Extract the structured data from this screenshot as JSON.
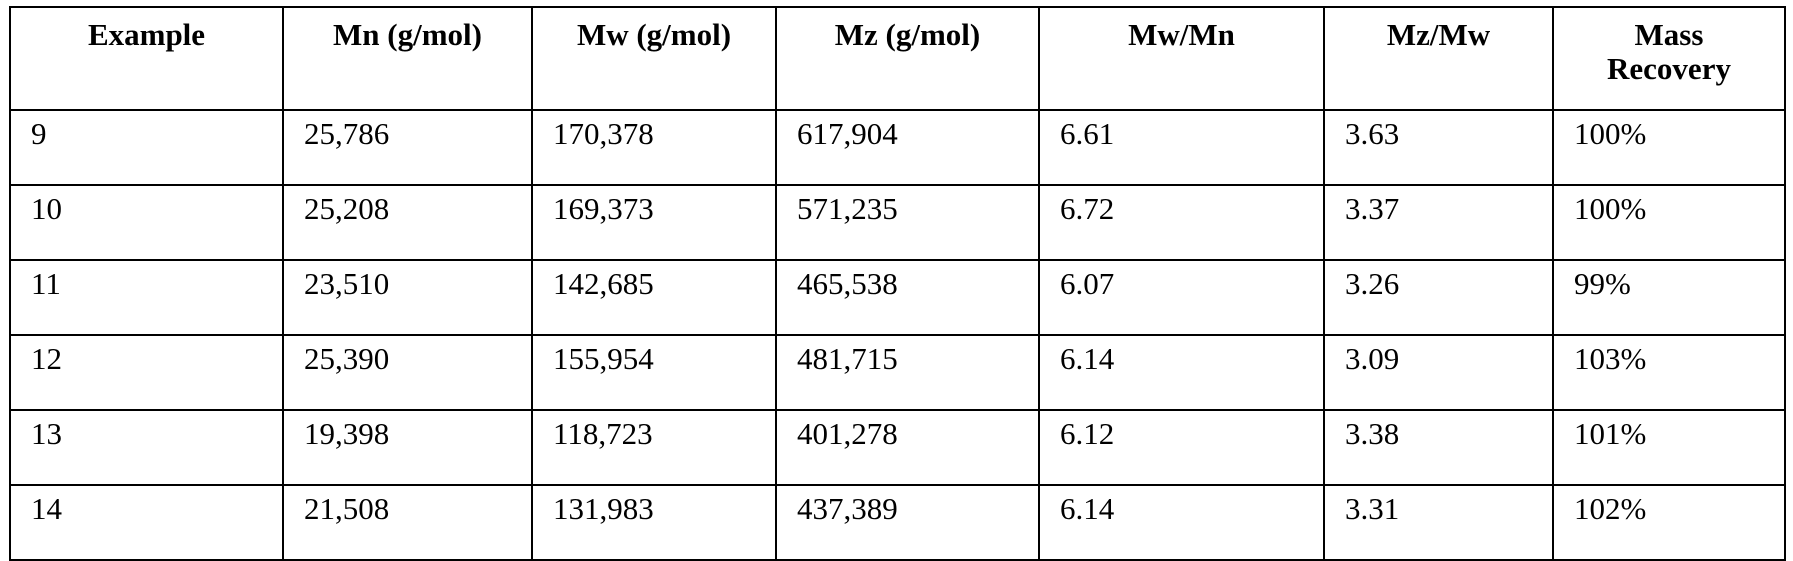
{
  "table": {
    "headers": [
      "Example",
      "Mn (g/mol)",
      "Mw (g/mol)",
      "Mz (g/mol)",
      "Mw/Mn",
      "Mz/Mw",
      "Mass Recovery"
    ],
    "rows": [
      [
        "9",
        "25,786",
        "170,378",
        "617,904",
        "6.61",
        "3.63",
        "100%"
      ],
      [
        "10",
        "25,208",
        "169,373",
        "571,235",
        "6.72",
        "3.37",
        "100%"
      ],
      [
        "11",
        "23,510",
        "142,685",
        "465,538",
        "6.07",
        "3.26",
        "99%"
      ],
      [
        "12",
        "25,390",
        "155,954",
        "481,715",
        "6.14",
        "3.09",
        "103%"
      ],
      [
        "13",
        "19,398",
        "118,723",
        "401,278",
        "6.12",
        "3.38",
        "101%"
      ],
      [
        "14",
        "21,508",
        "131,983",
        "437,389",
        "6.14",
        "3.31",
        "102%"
      ]
    ]
  }
}
